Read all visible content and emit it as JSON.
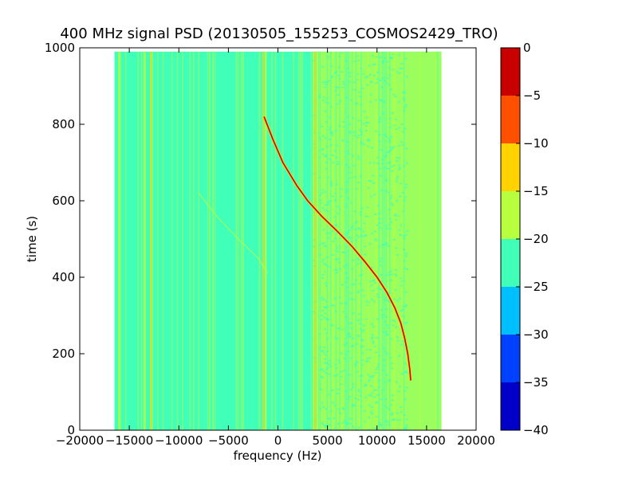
{
  "chart_data": {
    "type": "heatmap",
    "title": "400 MHz signal PSD (20130505_155253_COSMOS2429_TRO)",
    "xlabel": "frequency (Hz)",
    "ylabel": "time (s)",
    "xlim": [
      -20000,
      20000
    ],
    "ylim": [
      0,
      1000
    ],
    "x_ticks": [
      "−20000",
      "−15000",
      "−10000",
      "−5000",
      "0",
      "5000",
      "10000",
      "15000",
      "20000"
    ],
    "x_tick_values": [
      -20000,
      -15000,
      -10000,
      -5000,
      0,
      5000,
      10000,
      15000,
      20000
    ],
    "y_ticks": [
      "0",
      "200",
      "400",
      "600",
      "800",
      "1000"
    ],
    "y_tick_values": [
      0,
      200,
      400,
      600,
      800,
      1000
    ],
    "data_extent": {
      "x": [
        -16500,
        16500
      ],
      "y": [
        0,
        990
      ]
    },
    "background_level": -22,
    "high_noise_band": {
      "x": [
        3500,
        16500
      ],
      "level": -18
    },
    "vertical_lines": [
      {
        "x": -16000,
        "level": -18
      },
      {
        "x": -13500,
        "level": -16
      },
      {
        "x": -12800,
        "level": -14
      },
      {
        "x": -1500,
        "level": -14
      },
      {
        "x": -1200,
        "level": -16
      },
      {
        "x": 3800,
        "level": -15
      },
      {
        "x": 4000,
        "level": -16
      }
    ],
    "signal_trace": {
      "level": -3,
      "time": [
        820,
        760,
        700,
        640,
        600,
        560,
        520,
        480,
        440,
        400,
        360,
        320,
        280,
        240,
        200,
        160,
        130
      ],
      "frequency": [
        -1400,
        -500,
        500,
        1900,
        3000,
        4400,
        6000,
        7500,
        8800,
        10000,
        11000,
        11800,
        12400,
        12800,
        13100,
        13300,
        13400
      ]
    },
    "faint_trace": {
      "level": -17,
      "time": [
        620,
        560,
        500,
        450,
        410
      ],
      "frequency": [
        -8000,
        -6200,
        -4000,
        -2000,
        -1000
      ]
    },
    "colorbar": {
      "levels": [
        -40,
        -35,
        -30,
        -25,
        -20,
        -15,
        -10,
        -5,
        0
      ],
      "tick_labels": [
        "−40",
        "−35",
        "−30",
        "−25",
        "−20",
        "−15",
        "−10",
        "−5",
        "0"
      ],
      "colors": [
        "#0000c8",
        "#0040ff",
        "#00bfff",
        "#40ffb8",
        "#b8ff40",
        "#ffd200",
        "#ff5000",
        "#c80000"
      ]
    }
  }
}
